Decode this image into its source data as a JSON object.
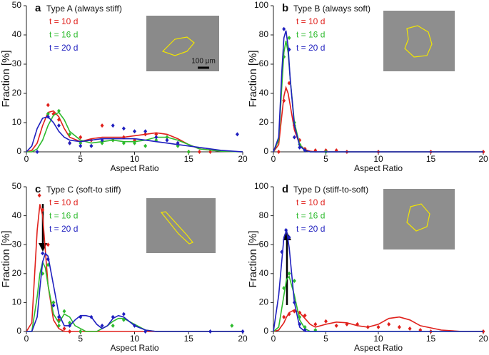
{
  "chart_data": [
    {
      "type": "scatter",
      "panel_label": "a",
      "title": "Type A (always stiff)",
      "xlabel": "Aspect Ratio",
      "ylabel": "Fraction [%]",
      "scale_bar": "100 μm",
      "xlim": [
        0,
        20
      ],
      "ylim": [
        0,
        50
      ],
      "xticks": [
        0,
        5,
        10,
        15,
        20
      ],
      "yticks": [
        0,
        10,
        20,
        30,
        40,
        50
      ],
      "series": [
        {
          "name": "t = 10 d",
          "color": "#e0201b",
          "x": [
            2,
            2.5,
            3,
            4,
            5,
            6,
            7,
            8,
            9,
            10,
            11,
            12,
            13,
            14,
            15,
            16,
            17
          ],
          "values": [
            16,
            13,
            11,
            3,
            5,
            4,
            9,
            4,
            5,
            4,
            6,
            6,
            5,
            3,
            0,
            0,
            0
          ],
          "fit_x": [
            0,
            0.5,
            1,
            1.5,
            2,
            2.5,
            3,
            3.5,
            4,
            5,
            6,
            7,
            8,
            9,
            10,
            11,
            12,
            13,
            14,
            15,
            16,
            18,
            20
          ],
          "fit_values": [
            0,
            0.5,
            3,
            9,
            13.5,
            14,
            12,
            8,
            5,
            3.5,
            4.5,
            5,
            5,
            5,
            5.5,
            6,
            6.5,
            6,
            4.5,
            2.5,
            1,
            0.2,
            0
          ]
        },
        {
          "name": "t = 16 d",
          "color": "#2dbb2d",
          "x": [
            2,
            3,
            4,
            5,
            6,
            7,
            8,
            9,
            10,
            11,
            12,
            13,
            14,
            15
          ],
          "values": [
            13,
            14,
            6,
            3,
            2,
            3,
            4,
            3,
            3,
            2,
            4,
            5,
            2,
            0
          ],
          "fit_x": [
            0,
            0.5,
            1,
            1.5,
            2,
            2.5,
            3,
            3.5,
            4,
            5,
            6,
            7,
            8,
            9,
            10,
            11,
            12,
            13,
            14,
            15,
            16,
            18,
            20
          ],
          "fit_values": [
            0,
            0,
            1,
            4,
            9,
            12.5,
            13.5,
            11,
            7,
            4,
            3,
            3.5,
            4,
            3.5,
            3.5,
            4,
            5,
            5,
            4,
            2.5,
            1,
            0.2,
            0
          ]
        },
        {
          "name": "t = 20 d",
          "color": "#1f1fbf",
          "x": [
            1,
            2,
            3,
            4,
            5,
            6,
            7,
            8,
            9,
            10,
            11,
            12,
            13,
            14,
            19.5
          ],
          "values": [
            0,
            12,
            9,
            3,
            2,
            2,
            4,
            9,
            8,
            7,
            7,
            5,
            4,
            3,
            6
          ],
          "fit_x": [
            0,
            0.5,
            1,
            1.5,
            2,
            2.5,
            3,
            3.5,
            4,
            5,
            6,
            7,
            8,
            9,
            10,
            11,
            12,
            13,
            14,
            15,
            16,
            18,
            20
          ],
          "fit_values": [
            0,
            2,
            8,
            11.5,
            12,
            10,
            7,
            5,
            4,
            3.5,
            4,
            4.5,
            4.5,
            4.5,
            4.5,
            4,
            3.5,
            3,
            2.5,
            2,
            1.5,
            0.5,
            0
          ]
        }
      ]
    },
    {
      "type": "scatter",
      "panel_label": "b",
      "title": "Type B (always soft)",
      "xlabel": "Aspect Ratio",
      "ylabel": "Fraction [%]",
      "xlim": [
        0,
        20
      ],
      "ylim": [
        0,
        100
      ],
      "xticks": [
        0,
        5,
        10,
        15,
        20
      ],
      "yticks": [
        0,
        20,
        40,
        60,
        80,
        100
      ],
      "series": [
        {
          "name": "t = 10 d",
          "color": "#e0201b",
          "x": [
            0.5,
            1,
            1.5,
            2,
            2.5,
            3,
            4,
            5,
            6,
            7,
            10,
            15,
            20
          ],
          "values": [
            0,
            35,
            47,
            18,
            8,
            2,
            1,
            1,
            1,
            0,
            0,
            0,
            0
          ],
          "fit_x": [
            0,
            0.5,
            0.8,
            1,
            1.2,
            1.4,
            1.6,
            2,
            2.5,
            3,
            3.5,
            4,
            5,
            20
          ],
          "fit_values": [
            0,
            5,
            25,
            38,
            44,
            40,
            32,
            15,
            5,
            1.5,
            0.5,
            0,
            0,
            0
          ]
        },
        {
          "name": "t = 16 d",
          "color": "#2dbb2d",
          "x": [
            1,
            1.5,
            2,
            2.5,
            3,
            5
          ],
          "values": [
            65,
            78,
            20,
            5,
            1,
            0
          ],
          "fit_x": [
            0,
            0.5,
            0.8,
            1,
            1.2,
            1.4,
            1.6,
            2,
            2.5,
            3,
            3.5,
            4,
            5,
            20
          ],
          "fit_values": [
            0,
            8,
            45,
            68,
            76,
            68,
            50,
            20,
            5,
            1,
            0,
            0,
            0,
            0
          ]
        },
        {
          "name": "t = 20 d",
          "color": "#1f1fbf",
          "x": [
            1,
            1.5,
            2,
            2.5,
            3
          ],
          "values": [
            84,
            70,
            10,
            3,
            1
          ],
          "fit_x": [
            0,
            0.5,
            0.8,
            1,
            1.2,
            1.4,
            1.6,
            2,
            2.5,
            3,
            3.5,
            4,
            5,
            20
          ],
          "fit_values": [
            0,
            10,
            55,
            78,
            83,
            72,
            50,
            18,
            4,
            1,
            0,
            0,
            0,
            0
          ]
        }
      ]
    },
    {
      "type": "scatter",
      "panel_label": "c",
      "title": "Type C (soft-to stiff)",
      "xlabel": "Aspect Ratio",
      "ylabel": "Fraction [%]",
      "xlim": [
        0,
        20
      ],
      "ylim": [
        0,
        50
      ],
      "xticks": [
        0,
        5,
        10,
        15,
        20
      ],
      "yticks": [
        0,
        10,
        20,
        30,
        40,
        50
      ],
      "series": [
        {
          "name": "t = 10 d",
          "color": "#e0201b",
          "x": [
            1.2,
            1.5,
            2,
            2.5,
            3,
            3.5,
            4,
            5
          ],
          "values": [
            47,
            42,
            30,
            10,
            4,
            1,
            0,
            0
          ],
          "fit_x": [
            0,
            0.5,
            1,
            1.25,
            1.5,
            1.75,
            2,
            2.5,
            3,
            3.5,
            4,
            5,
            20
          ],
          "fit_values": [
            0,
            3,
            35,
            44,
            40,
            28,
            16,
            4,
            1,
            0,
            0,
            0,
            0
          ]
        },
        {
          "name": "t = 16 d",
          "color": "#2dbb2d",
          "x": [
            1.5,
            2,
            2.5,
            3,
            3.5,
            4,
            5,
            8,
            9,
            19
          ],
          "values": [
            20,
            23,
            10,
            2,
            7,
            3,
            0,
            2,
            4,
            2
          ],
          "fit_x": [
            0,
            0.5,
            1,
            1.25,
            1.5,
            1.75,
            2,
            2.5,
            3,
            3.5,
            4,
            4.5,
            5,
            5.5,
            6,
            6.5,
            7,
            7.5,
            8,
            8.5,
            9,
            10,
            11,
            12,
            15,
            20
          ],
          "fit_values": [
            0,
            0,
            12,
            20,
            24,
            22,
            16,
            6,
            3,
            6,
            5,
            2,
            1,
            0,
            0,
            0,
            1,
            2,
            3.5,
            4.5,
            4.5,
            2.5,
            0.5,
            0,
            0,
            0
          ]
        },
        {
          "name": "t = 20 d",
          "color": "#1f1fbf",
          "x": [
            1.5,
            2,
            2.5,
            3,
            4,
            5,
            6,
            7,
            8,
            9,
            10,
            11,
            17,
            20
          ],
          "values": [
            27,
            25,
            9,
            5,
            2,
            5,
            5,
            2,
            5,
            6,
            2,
            0,
            0,
            0
          ],
          "fit_x": [
            0,
            0.5,
            1,
            1.25,
            1.5,
            1.75,
            2,
            2.5,
            3,
            3.5,
            4,
            4.5,
            5,
            5.5,
            6,
            6.5,
            7,
            7.5,
            8,
            8.5,
            9,
            10,
            11,
            12,
            15,
            20
          ],
          "fit_values": [
            0,
            0,
            5,
            15,
            24,
            27,
            26,
            16,
            6,
            2,
            2,
            4,
            5.5,
            5.5,
            5,
            2.5,
            1,
            2,
            4.5,
            5.5,
            5,
            2,
            0.5,
            0,
            0,
            0
          ]
        }
      ]
    },
    {
      "type": "scatter",
      "panel_label": "d",
      "title": "Type D (stiff-to-soft)",
      "xlabel": "Aspect Ratio",
      "ylabel": "Fraction [%]",
      "xlim": [
        0,
        20
      ],
      "ylim": [
        0,
        100
      ],
      "xticks": [
        0,
        5,
        10,
        15,
        20
      ],
      "yticks": [
        0,
        20,
        40,
        60,
        80,
        100
      ],
      "series": [
        {
          "name": "t = 10 d",
          "color": "#e0201b",
          "x": [
            1,
            1.5,
            2,
            2.5,
            3,
            4,
            5,
            6,
            7,
            8,
            9,
            10,
            11,
            12,
            13,
            14,
            15,
            20
          ],
          "values": [
            10,
            12,
            14,
            13,
            11,
            5,
            7,
            4,
            5,
            5,
            3,
            3,
            5,
            3,
            2,
            1,
            0,
            0
          ],
          "fit_x": [
            0,
            0.5,
            1,
            1.25,
            1.5,
            2,
            2.5,
            3,
            3.5,
            4,
            5,
            6,
            7,
            8,
            9,
            10,
            11,
            12,
            13,
            14,
            16,
            18,
            20
          ],
          "fit_values": [
            0,
            1,
            6,
            10,
            13,
            15,
            13,
            9,
            5,
            3,
            5,
            6.5,
            6,
            4,
            3,
            5,
            9,
            10,
            8,
            4,
            1,
            0,
            0
          ]
        },
        {
          "name": "t = 16 d",
          "color": "#2dbb2d",
          "x": [
            1,
            1.5,
            2,
            2.5,
            3,
            4
          ],
          "values": [
            30,
            40,
            35,
            10,
            3,
            1
          ],
          "fit_x": [
            0,
            0.5,
            1,
            1.25,
            1.5,
            2,
            2.5,
            3,
            3.5,
            4,
            20
          ],
          "fit_values": [
            0,
            3,
            25,
            36,
            38,
            25,
            8,
            2,
            0,
            0,
            0
          ]
        },
        {
          "name": "t = 20 d",
          "color": "#1f1fbf",
          "x": [
            0.8,
            1.2,
            1.5,
            2,
            2.5,
            3
          ],
          "values": [
            55,
            70,
            65,
            20,
            5,
            1
          ],
          "fit_x": [
            0,
            0.5,
            1,
            1.25,
            1.5,
            2,
            2.5,
            3,
            3.5,
            20
          ],
          "fit_values": [
            0,
            25,
            65,
            70,
            58,
            20,
            3,
            0,
            0,
            0
          ]
        }
      ]
    }
  ]
}
